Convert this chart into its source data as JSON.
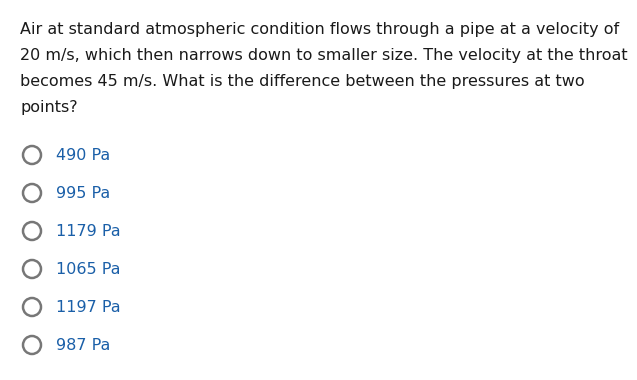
{
  "question_lines": [
    "Air at standard atmospheric condition flows through a pipe at a velocity of",
    "20 m/s, which then narrows down to smaller size. The velocity at the throat",
    "becomes 45 m/s. What is the difference between the pressures at two",
    "points?"
  ],
  "options": [
    "490 Pa",
    "995 Pa",
    "1179 Pa",
    "1065 Pa",
    "1197 Pa",
    "987 Pa"
  ],
  "question_color": "#1a1a1a",
  "option_color": "#1a5fa8",
  "background_color": "#ffffff",
  "question_fontsize": 11.5,
  "option_fontsize": 11.5,
  "circle_color": "#777777",
  "circle_linewidth": 1.8
}
